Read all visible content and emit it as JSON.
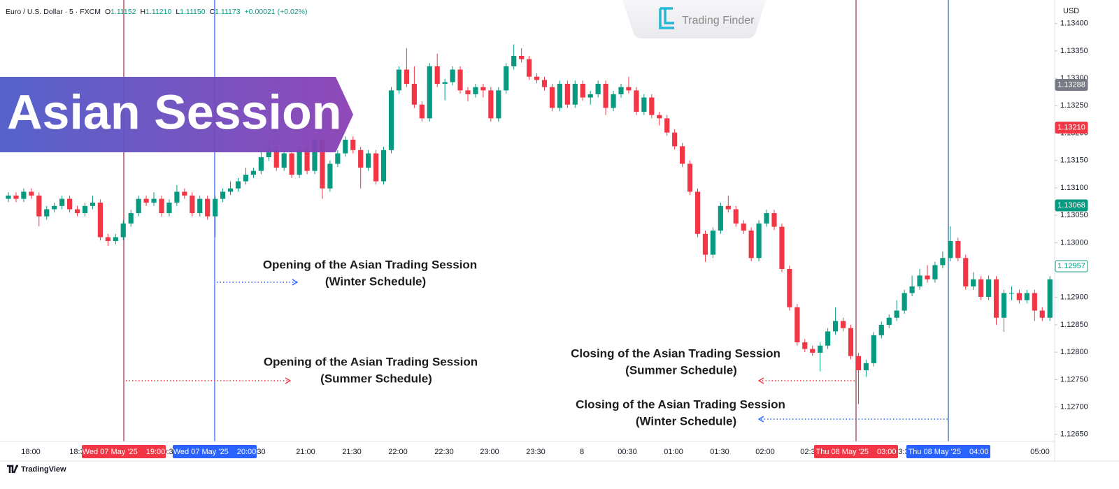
{
  "header": {
    "symbol": "Euro / U.S. Dollar · 5 · FXCM",
    "ohlc": [
      [
        "O",
        "1.11152"
      ],
      [
        "H",
        "1.11210"
      ],
      [
        "L",
        "1.11150"
      ],
      [
        "C",
        "1.11173"
      ]
    ],
    "change": "+0.00021 (+0.02%)"
  },
  "logo": "Trading Finder",
  "banner": "Asian Session",
  "footer": "TradingView",
  "chart_data": {
    "type": "candlestick",
    "currency": "USD",
    "up_color": "#089981",
    "down_color": "#f23645",
    "open": [
      1.1308,
      1.13086,
      1.1308,
      1.13093,
      1.13086,
      1.13048,
      1.13061,
      1.13067,
      1.1308,
      1.13061,
      1.13054,
      1.13067,
      1.13073,
      1.1301,
      1.13003,
      1.1301,
      1.13035,
      1.13054,
      1.1308,
      1.13073,
      1.1308,
      1.13054,
      1.13073,
      1.13093,
      1.13086,
      1.13054,
      1.1308,
      1.13048,
      1.1308,
      1.13093,
      1.13099,
      1.13112,
      1.13124,
      1.13131,
      1.13156,
      1.13169,
      1.13137,
      1.13163,
      1.13124,
      1.13169,
      1.13131,
      1.13188,
      1.13099,
      1.13144,
      1.13163,
      1.13188,
      1.13169,
      1.13137,
      1.13163,
      1.13112,
      1.13169,
      1.13278,
      1.13316,
      1.1329,
      1.13252,
      1.13227,
      1.13322,
      1.1329,
      1.13293,
      1.13316,
      1.13278,
      1.13271,
      1.13284,
      1.13278,
      1.13227,
      1.13278,
      1.13322,
      1.13341,
      1.13335,
      1.13303,
      1.13297,
      1.13284,
      1.13246,
      1.1329,
      1.13252,
      1.1329,
      1.13265,
      1.13271,
      1.1329,
      1.13246,
      1.13271,
      1.13284,
      1.13278,
      1.13239,
      1.13265,
      1.13233,
      1.13227,
      1.13201,
      1.13176,
      1.13144,
      1.13093,
      1.13016,
      1.12978,
      1.13022,
      1.13067,
      1.13061,
      1.13035,
      1.13022,
      1.12972,
      1.13035,
      1.13054,
      1.13029,
      1.12952,
      1.12882,
      1.12818,
      1.12806,
      1.12799,
      1.12812,
      1.12838,
      1.12857,
      1.12844,
      1.12793,
      1.12767,
      1.1278,
      1.12831,
      1.1285,
      1.12863,
      1.12876,
      1.12908,
      1.1292,
      1.1294,
      1.12933,
      1.12959,
      1.12972,
      1.13003,
      1.12972,
      1.1292,
      1.12933,
      1.12901,
      1.12933,
      1.12863,
      1.12908,
      1.12908,
      1.12895,
      1.12908,
      1.12876,
      1.12863
    ],
    "high": [
      1.13092,
      1.13092,
      1.13099,
      1.13099,
      1.13092,
      1.13067,
      1.13073,
      1.13086,
      1.13086,
      1.13067,
      1.13073,
      1.13086,
      1.13079,
      1.13016,
      1.13016,
      1.13041,
      1.1306,
      1.13086,
      1.13086,
      1.13092,
      1.13086,
      1.13079,
      1.13105,
      1.13099,
      1.13092,
      1.13086,
      1.13086,
      1.13086,
      1.13099,
      1.13112,
      1.13118,
      1.13137,
      1.13137,
      1.13169,
      1.13182,
      1.13175,
      1.13169,
      1.13169,
      1.13175,
      1.13175,
      1.13194,
      1.13194,
      1.1315,
      1.13169,
      1.13194,
      1.13194,
      1.13175,
      1.13169,
      1.13169,
      1.13175,
      1.13284,
      1.13322,
      1.13355,
      1.13322,
      1.13258,
      1.13328,
      1.13345,
      1.13299,
      1.13322,
      1.13322,
      1.13284,
      1.1329,
      1.1329,
      1.13284,
      1.13284,
      1.13328,
      1.13362,
      1.13355,
      1.13341,
      1.13309,
      1.13303,
      1.1329,
      1.13296,
      1.13296,
      1.13296,
      1.13296,
      1.13277,
      1.13296,
      1.13296,
      1.13277,
      1.1329,
      1.13303,
      1.13284,
      1.13271,
      1.13271,
      1.13239,
      1.13233,
      1.13207,
      1.13182,
      1.1315,
      1.13099,
      1.13022,
      1.13028,
      1.13073,
      1.13086,
      1.13067,
      1.13041,
      1.13028,
      1.13041,
      1.1306,
      1.1306,
      1.13035,
      1.12958,
      1.12888,
      1.12824,
      1.12812,
      1.12818,
      1.12844,
      1.12882,
      1.12863,
      1.1285,
      1.12799,
      1.12786,
      1.12837,
      1.12856,
      1.12869,
      1.12895,
      1.12914,
      1.1294,
      1.12952,
      1.12959,
      1.12965,
      1.12984,
      1.1303,
      1.13009,
      1.12978,
      1.12946,
      1.12939,
      1.1294,
      1.12939,
      1.12914,
      1.1292,
      1.12914,
      1.12914,
      1.12914,
      1.12882,
      1.12939
    ],
    "low": [
      1.13074,
      1.13074,
      1.13074,
      1.1308,
      1.1303,
      1.13042,
      1.13055,
      1.13061,
      1.13055,
      1.13048,
      1.13048,
      1.13061,
      1.13004,
      1.12994,
      1.12997,
      1.13004,
      1.13029,
      1.13048,
      1.13067,
      1.13067,
      1.13048,
      1.13048,
      1.13067,
      1.1308,
      1.13048,
      1.13048,
      1.13042,
      1.1301,
      1.13074,
      1.13087,
      1.13093,
      1.13106,
      1.13118,
      1.13125,
      1.1315,
      1.13131,
      1.13131,
      1.13118,
      1.13118,
      1.13125,
      1.13125,
      1.1308,
      1.13093,
      1.13138,
      1.13157,
      1.13163,
      1.13099,
      1.13131,
      1.13106,
      1.13106,
      1.13163,
      1.13272,
      1.13284,
      1.13246,
      1.13221,
      1.13221,
      1.13284,
      1.1326,
      1.13287,
      1.13272,
      1.13258,
      1.13265,
      1.13265,
      1.13221,
      1.13221,
      1.13272,
      1.13316,
      1.13329,
      1.13297,
      1.13291,
      1.13278,
      1.1324,
      1.1324,
      1.13246,
      1.13246,
      1.13259,
      1.13252,
      1.13265,
      1.13233,
      1.1324,
      1.13265,
      1.13272,
      1.13233,
      1.13233,
      1.13227,
      1.13214,
      1.13195,
      1.1317,
      1.13138,
      1.13087,
      1.1301,
      1.12965,
      1.12972,
      1.13016,
      1.13055,
      1.13029,
      1.13016,
      1.12966,
      1.12966,
      1.13029,
      1.13023,
      1.12946,
      1.12876,
      1.12812,
      1.128,
      1.12793,
      1.12765,
      1.12806,
      1.12832,
      1.12838,
      1.12787,
      1.12705,
      1.12755,
      1.12774,
      1.12825,
      1.12844,
      1.12857,
      1.1287,
      1.12902,
      1.12914,
      1.12927,
      1.12927,
      1.12953,
      1.12966,
      1.12966,
      1.12914,
      1.12914,
      1.12895,
      1.12895,
      1.1285,
      1.12837,
      1.12895,
      1.12889,
      1.12889,
      1.12857,
      1.12857,
      1.12857
    ],
    "close": [
      1.13086,
      1.1308,
      1.13093,
      1.13086,
      1.13048,
      1.13061,
      1.13067,
      1.1308,
      1.13061,
      1.13054,
      1.13067,
      1.13073,
      1.1301,
      1.13003,
      1.1301,
      1.13035,
      1.13054,
      1.1308,
      1.13073,
      1.1308,
      1.13054,
      1.13073,
      1.13093,
      1.13086,
      1.13054,
      1.1308,
      1.13048,
      1.1308,
      1.13093,
      1.13099,
      1.13112,
      1.13124,
      1.13131,
      1.13156,
      1.13169,
      1.13137,
      1.13163,
      1.13124,
      1.13169,
      1.13131,
      1.13188,
      1.13099,
      1.13144,
      1.13163,
      1.13188,
      1.13169,
      1.13137,
      1.13163,
      1.13112,
      1.13169,
      1.13278,
      1.13316,
      1.1329,
      1.13252,
      1.13227,
      1.13322,
      1.1329,
      1.13293,
      1.13316,
      1.13278,
      1.13271,
      1.13284,
      1.13278,
      1.13227,
      1.13278,
      1.13322,
      1.13341,
      1.13335,
      1.13303,
      1.13297,
      1.13284,
      1.13246,
      1.1329,
      1.13252,
      1.1329,
      1.13265,
      1.13271,
      1.1329,
      1.13246,
      1.13271,
      1.13284,
      1.13278,
      1.13239,
      1.13265,
      1.13233,
      1.13227,
      1.13201,
      1.13176,
      1.13144,
      1.13093,
      1.13016,
      1.12978,
      1.13022,
      1.13067,
      1.13061,
      1.13035,
      1.13022,
      1.12972,
      1.13035,
      1.13054,
      1.13029,
      1.12952,
      1.12882,
      1.12818,
      1.12806,
      1.12799,
      1.12812,
      1.12838,
      1.12857,
      1.12844,
      1.12793,
      1.12767,
      1.1278,
      1.12831,
      1.1285,
      1.12863,
      1.12876,
      1.12908,
      1.1292,
      1.1294,
      1.12933,
      1.12959,
      1.12972,
      1.13003,
      1.12972,
      1.1292,
      1.12933,
      1.12901,
      1.12933,
      1.12863,
      1.12908,
      1.12908,
      1.12895,
      1.12908,
      1.12876,
      1.12863,
      1.12933
    ],
    "ylim": [
      1.12637,
      1.13443
    ],
    "yticks": [
      {
        "value": 1.134,
        "label": "1.13400"
      },
      {
        "value": 1.1335,
        "label": "1.13350"
      },
      {
        "value": 1.133,
        "label": "1.13300"
      },
      {
        "value": 1.1325,
        "label": "1.13250"
      },
      {
        "value": 1.132,
        "label": "1.13200"
      },
      {
        "value": 1.1315,
        "label": "1.13150"
      },
      {
        "value": 1.131,
        "label": "1.13100"
      },
      {
        "value": 1.1305,
        "label": "1.13050"
      },
      {
        "value": 1.13,
        "label": "1.13000"
      },
      {
        "value": 1.1295,
        "label": "1.12950"
      },
      {
        "value": 1.129,
        "label": "1.12900"
      },
      {
        "value": 1.1285,
        "label": "1.12850"
      },
      {
        "value": 1.128,
        "label": "1.12800"
      },
      {
        "value": 1.1275,
        "label": "1.12750"
      },
      {
        "value": 1.127,
        "label": "1.12700"
      },
      {
        "value": 1.1265,
        "label": "1.12650"
      }
    ],
    "price_labels": [
      {
        "value": 1.13288,
        "label": "1.13288",
        "color": "#787b86",
        "outline": false
      },
      {
        "value": 1.1321,
        "label": "1.13210",
        "color": "#f23645",
        "outline": false
      },
      {
        "value": 1.13068,
        "label": "1.13068",
        "color": "#089981",
        "outline": false
      },
      {
        "value": 1.12957,
        "label": "1.12957",
        "color": "#089981",
        "outline": true
      }
    ],
    "grid": false,
    "time_labels": [
      "18:00",
      "18:3",
      "0:3",
      ":30",
      "21:00",
      "21:30",
      "22:00",
      "22:30",
      "23:00",
      "23:30",
      "8",
      "00:30",
      "01:00",
      "01:30",
      "02:00",
      "02:3",
      "3:3",
      "4:30",
      "05:00"
    ],
    "sessions": [
      {
        "date": "Wed 07 May '25",
        "time": "19:00",
        "color": "#f23645",
        "line": "#9b2d3c"
      },
      {
        "date": "Wed 07 May '25",
        "time": "20:00",
        "color": "#2962ff",
        "line": "#2962ff"
      },
      {
        "date": "Thu 08 May '25",
        "time": "03:00",
        "color": "#f23645",
        "line": "#9b2d3c"
      },
      {
        "date": "Thu 08 May '25",
        "time": "04:00",
        "color": "#2962ff",
        "line": "#1e5aa8"
      }
    ],
    "annotations": [
      {
        "lines": [
          "Opening of the Asian Trading Session",
          "(Winter Schedule)"
        ]
      },
      {
        "lines": [
          "Opening of the Asian Trading Session",
          "(Summer Schedule)"
        ]
      },
      {
        "lines": [
          "Closing of the Asian Trading Session",
          "(Summer Schedule)"
        ]
      },
      {
        "lines": [
          "Closing of the Asian Trading Session",
          "(Winter Schedule)"
        ]
      }
    ]
  }
}
